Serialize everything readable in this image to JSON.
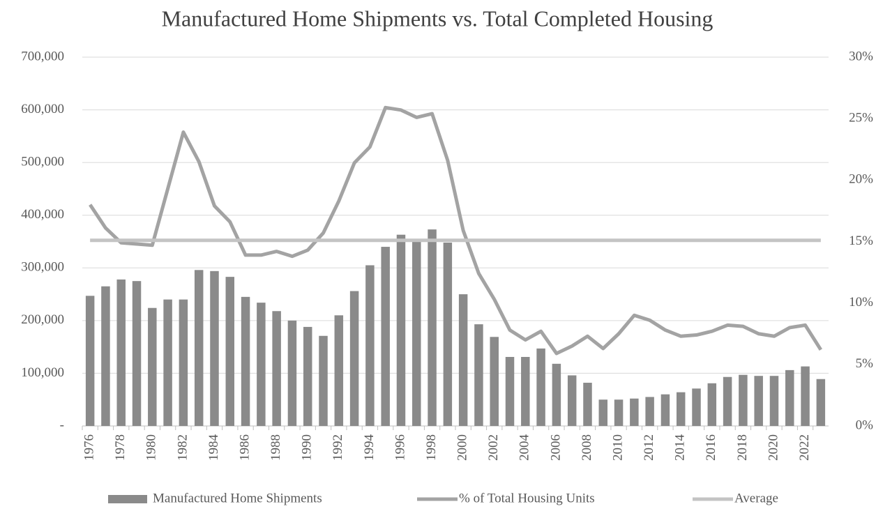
{
  "chart_data": {
    "type": "bar_line",
    "title": "Manufactured Home Shipments vs. Total Completed Housing",
    "categories": [
      "1976",
      null,
      "1978",
      null,
      "1980",
      null,
      "1982",
      null,
      "1984",
      null,
      "1986",
      null,
      "1988",
      null,
      "1990",
      null,
      "1992",
      null,
      "1994",
      null,
      "1996",
      null,
      "1998",
      null,
      "2000",
      null,
      "2002",
      null,
      "2004",
      null,
      "2006",
      null,
      "2008",
      null,
      "2010",
      null,
      "2012",
      null,
      "2014",
      null,
      "2016",
      null,
      "2018",
      null,
      "2020",
      null,
      "2022",
      null
    ],
    "series": [
      {
        "name": "Manufactured Home Shipments",
        "color": "#8a8a8a",
        "kind": "bar",
        "values": [
          247000,
          265000,
          278000,
          275000,
          224000,
          240000,
          240000,
          296000,
          294000,
          283000,
          245000,
          234000,
          218000,
          200000,
          188000,
          171000,
          210000,
          256000,
          305000,
          340000,
          363000,
          353000,
          373000,
          348000,
          250000,
          193000,
          169000,
          131000,
          131000,
          147000,
          118000,
          96000,
          82000,
          50000,
          50000,
          52000,
          55000,
          60000,
          64000,
          71000,
          81000,
          93000,
          97000,
          95000,
          95000,
          106000,
          113000,
          89000
        ]
      },
      {
        "name": "% of Total Housing Units",
        "color": "#a3a3a3",
        "kind": "line",
        "axis": "y2",
        "values": [
          18.0,
          16.1,
          14.9,
          14.8,
          14.7,
          19.3,
          23.9,
          21.5,
          17.9,
          16.6,
          13.9,
          13.9,
          14.2,
          13.8,
          14.3,
          15.7,
          18.3,
          21.4,
          22.7,
          25.9,
          25.7,
          25.1,
          25.4,
          21.6,
          15.9,
          12.4,
          10.3,
          7.8,
          7.0,
          7.7,
          5.9,
          6.5,
          7.3,
          6.3,
          7.5,
          9.0,
          8.6,
          7.8,
          7.3,
          7.4,
          7.7,
          8.2,
          8.1,
          7.5,
          7.3,
          8.0,
          8.2,
          6.2
        ]
      },
      {
        "name": "Average",
        "color": "#c4c4c4",
        "kind": "line",
        "axis": "y2",
        "values": [
          15.1,
          15.1,
          15.1,
          15.1,
          15.1,
          15.1,
          15.1,
          15.1,
          15.1,
          15.1,
          15.1,
          15.1,
          15.1,
          15.1,
          15.1,
          15.1,
          15.1,
          15.1,
          15.1,
          15.1,
          15.1,
          15.1,
          15.1,
          15.1,
          15.1,
          15.1,
          15.1,
          15.1,
          15.1,
          15.1,
          15.1,
          15.1,
          15.1,
          15.1,
          15.1,
          15.1,
          15.1,
          15.1,
          15.1,
          15.1,
          15.1,
          15.1,
          15.1,
          15.1,
          15.1,
          15.1,
          15.1,
          15.1
        ]
      }
    ],
    "ylim": [
      0,
      700000
    ],
    "yticks": [
      {
        "value": 0,
        "label": "-"
      },
      {
        "value": 100000,
        "label": "100,000"
      },
      {
        "value": 200000,
        "label": "200,000"
      },
      {
        "value": 300000,
        "label": "300,000"
      },
      {
        "value": 400000,
        "label": "400,000"
      },
      {
        "value": 500000,
        "label": "500,000"
      },
      {
        "value": 600000,
        "label": "600,000"
      },
      {
        "value": 700000,
        "label": "700,000"
      }
    ],
    "y2lim": [
      0,
      30
    ],
    "y2ticks": [
      {
        "value": 0,
        "label": "0%"
      },
      {
        "value": 5,
        "label": "5%"
      },
      {
        "value": 10,
        "label": "10%"
      },
      {
        "value": 15,
        "label": "15%"
      },
      {
        "value": 20,
        "label": "20%"
      },
      {
        "value": 25,
        "label": "25%"
      },
      {
        "value": 30,
        "label": "30%"
      }
    ],
    "grid": true,
    "legend": "bottom"
  }
}
